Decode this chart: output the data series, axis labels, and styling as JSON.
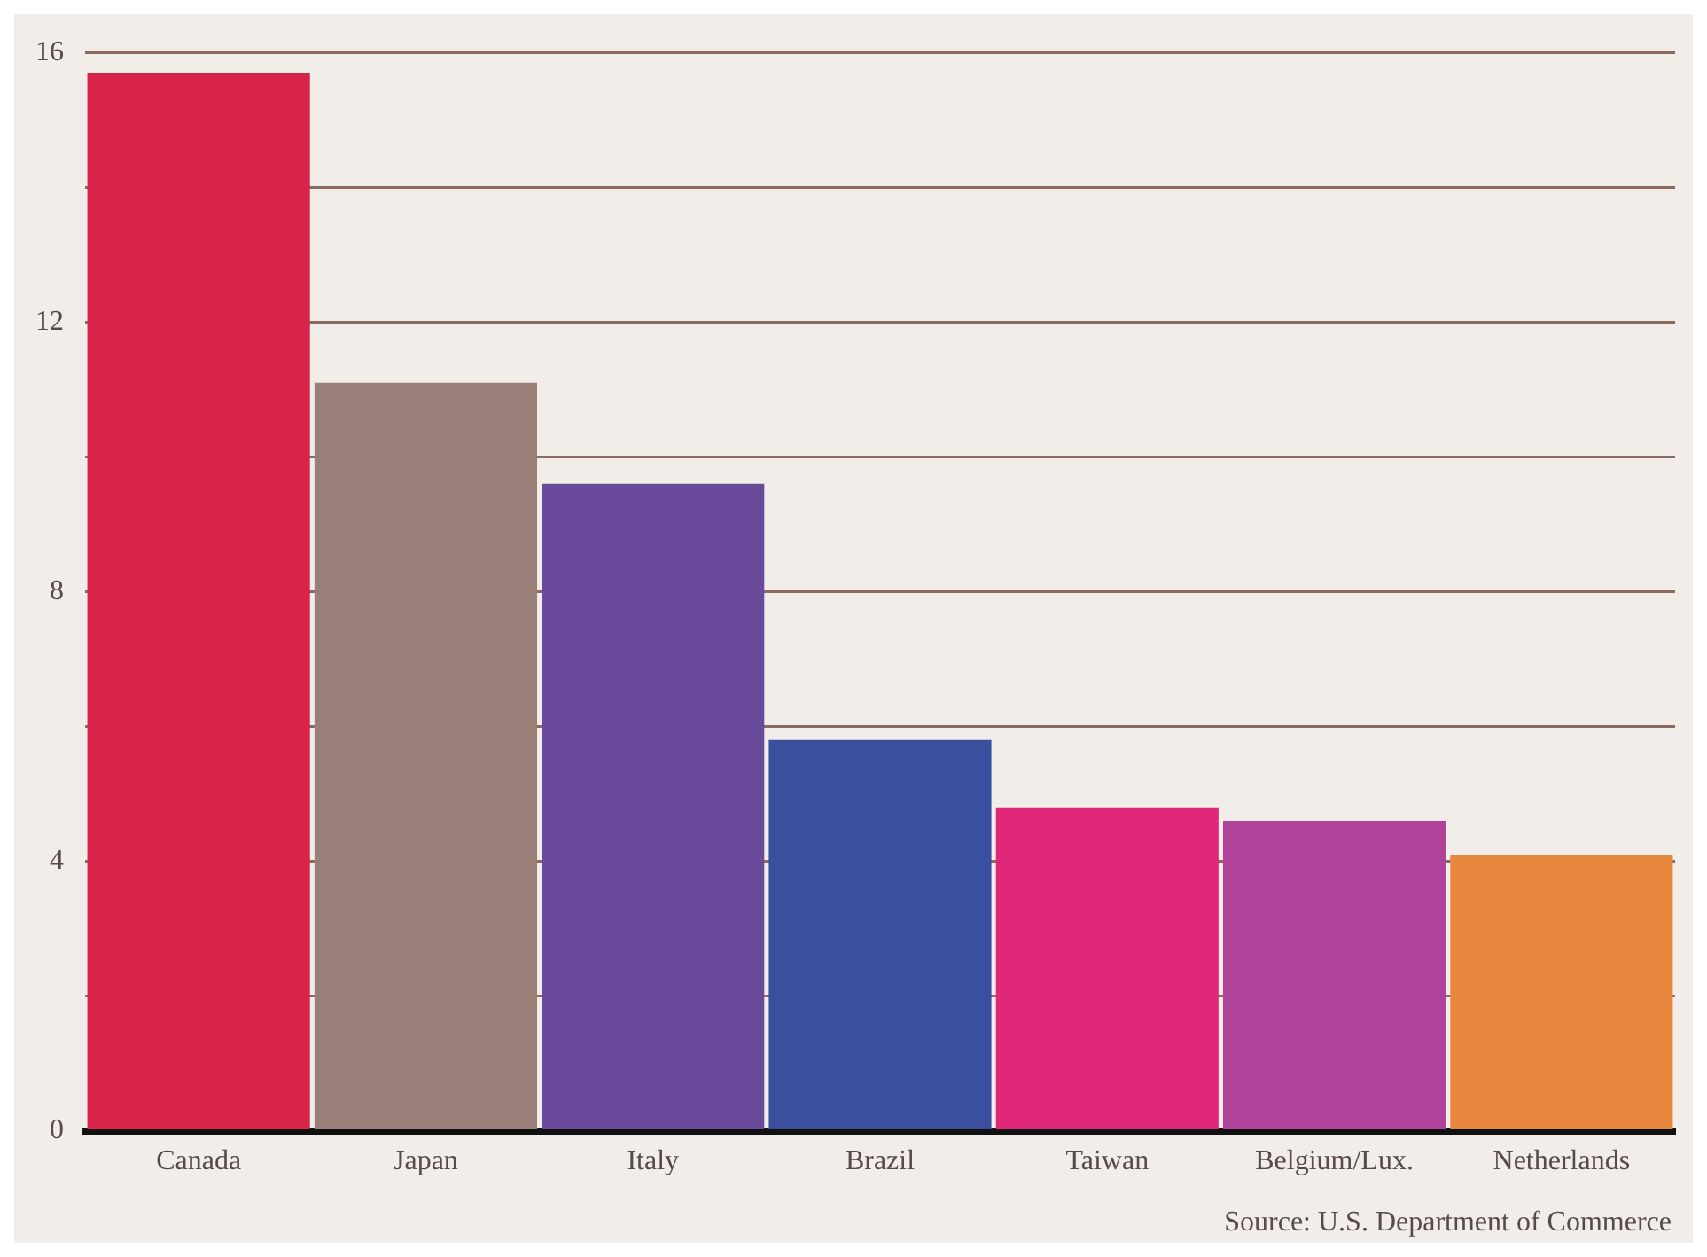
{
  "chart_data": {
    "type": "bar",
    "categories": [
      "Canada",
      "Japan",
      "Italy",
      "Brazil",
      "Taiwan",
      "Belgium/Lux.",
      "Netherlands"
    ],
    "values": [
      15.7,
      11.1,
      9.6,
      5.8,
      4.8,
      4.6,
      4.1
    ],
    "colors": [
      "#d9244a",
      "#9a7f78",
      "#6a4a9a",
      "#3a4f9e",
      "#e0287a",
      "#b0429a",
      "#e8883e"
    ],
    "ylim": [
      0,
      16
    ],
    "yticks": [
      0,
      {
        "value": 2,
        "label": null
      },
      4,
      {
        "value": 6,
        "label": null
      },
      8,
      {
        "value": 10,
        "label": null
      },
      12,
      {
        "value": 14,
        "label": null
      },
      16
    ],
    "grid": "y",
    "annotations": [
      "Source: U.S. Department of Commerce"
    ]
  }
}
